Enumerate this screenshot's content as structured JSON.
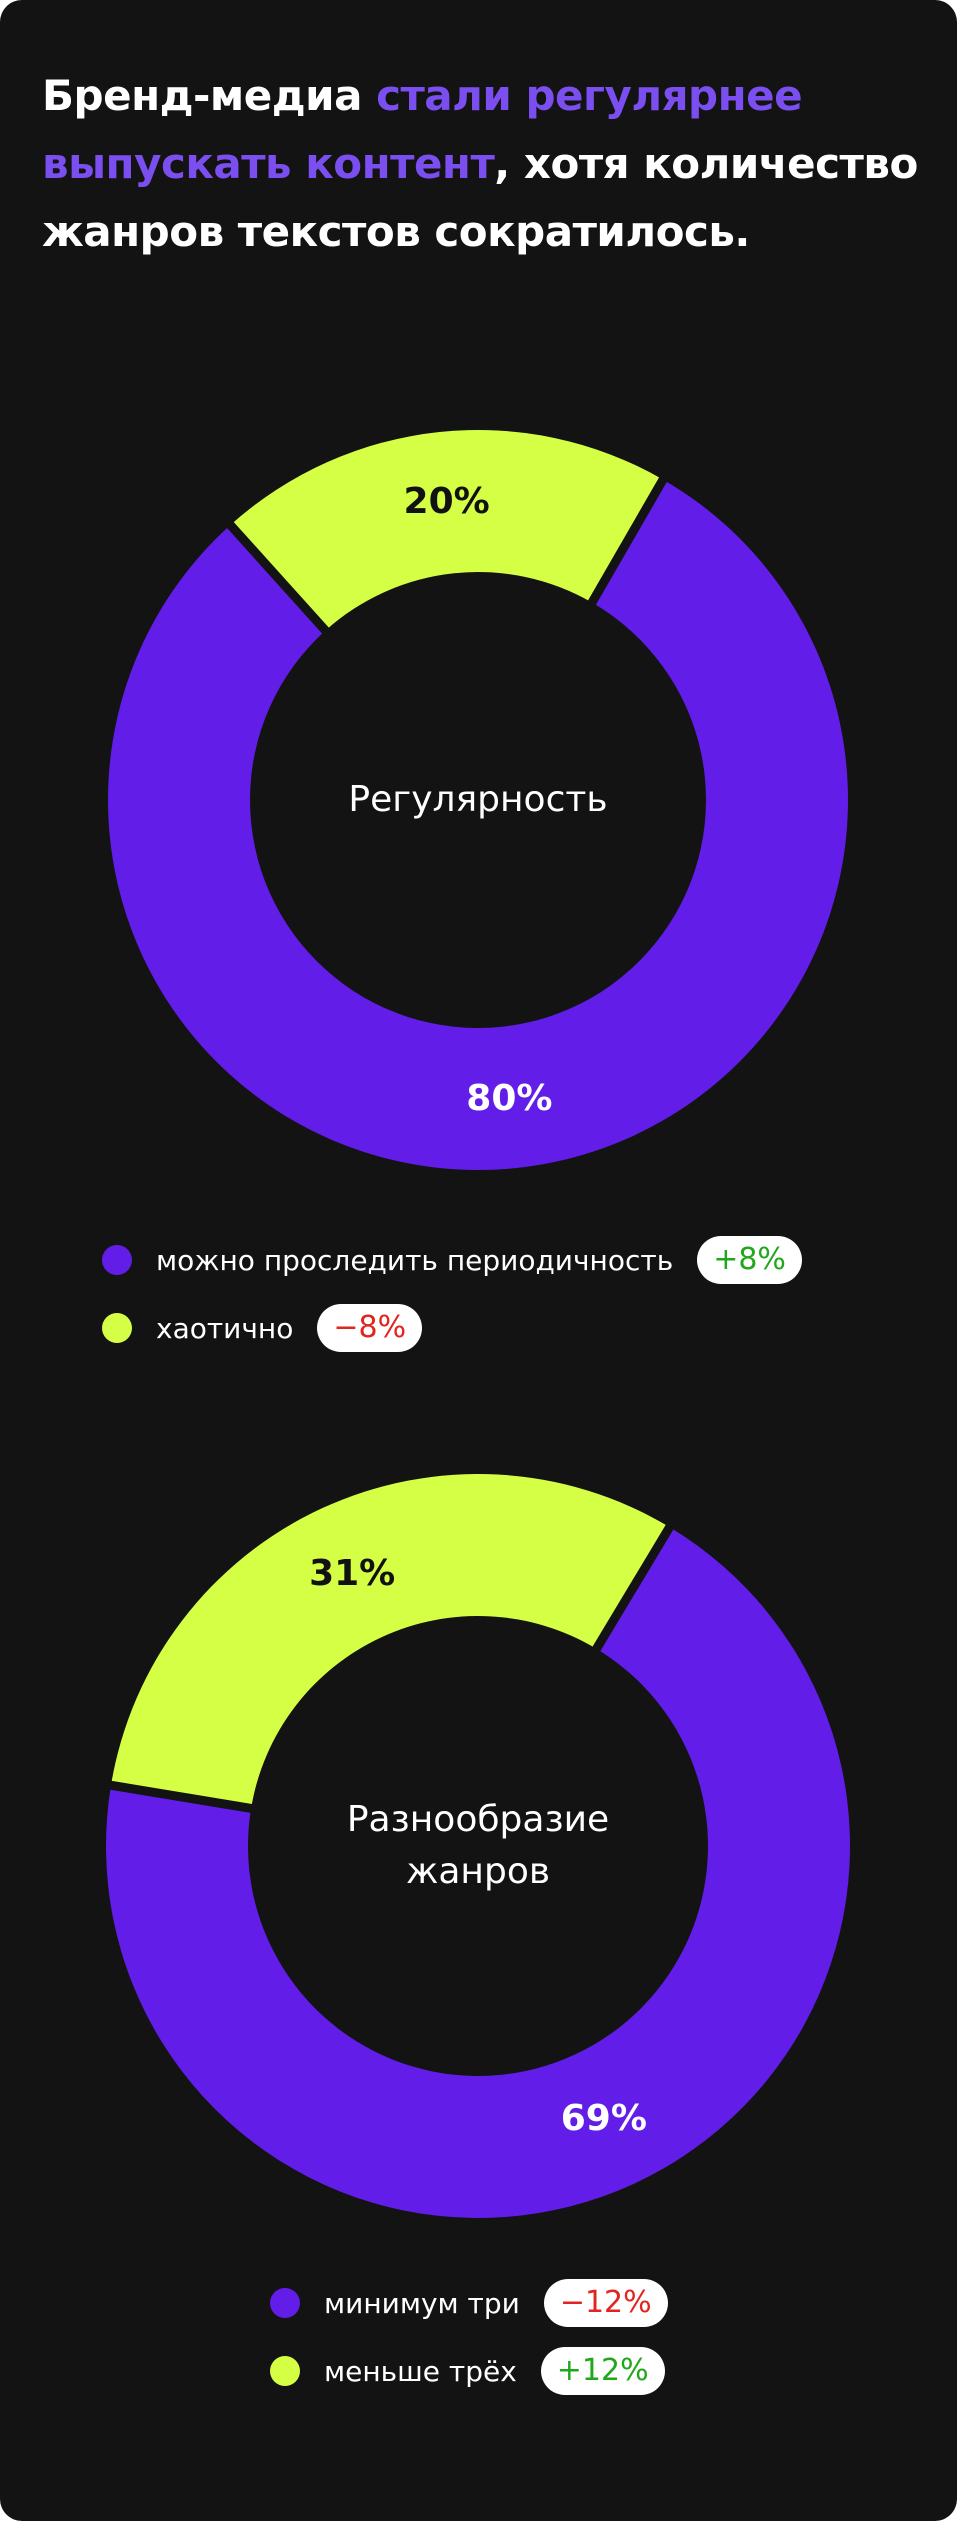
{
  "headline": {
    "part1": "Бренд-медиа ",
    "highlight": "стали регулярнее выпускать контент",
    "part2": ", хотя количество жанров текстов сократилось."
  },
  "colors": {
    "background": "#131313",
    "purple": "#621ee8",
    "lime": "#d4ff45",
    "highlight_text": "#7b4ef0",
    "positive": "#1fa81a",
    "negative": "#e0241f"
  },
  "chart_data": [
    {
      "type": "pie",
      "title": "Регулярность",
      "slices": [
        {
          "label": "можно проследить периодичность",
          "value": 80,
          "display": "80%",
          "color": "#621ee8",
          "change": "+8%",
          "change_dir": "up"
        },
        {
          "label": "хаотично",
          "value": 20,
          "display": "20%",
          "color": "#d4ff45",
          "change": "−8%",
          "change_dir": "down"
        }
      ]
    },
    {
      "type": "pie",
      "title": "Разнообразие жанров",
      "slices": [
        {
          "label": "минимум три",
          "value": 69,
          "display": "69%",
          "color": "#621ee8",
          "change": "−12%",
          "change_dir": "down"
        },
        {
          "label": "меньше трёх",
          "value": 31,
          "display": "31%",
          "color": "#d4ff45",
          "change": "+12%",
          "change_dir": "up"
        }
      ]
    }
  ]
}
